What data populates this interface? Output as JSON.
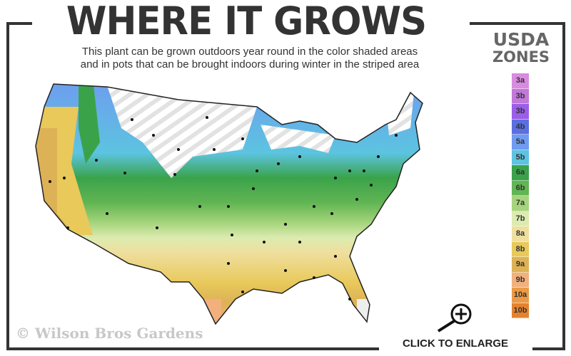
{
  "header": {
    "title": "WHERE IT GROWS",
    "subtitle_line1": "This plant can be grown outdoors year round in the color shaded areas",
    "subtitle_line2": "and in pots that can be brought indoors during winter in the striped area"
  },
  "legend": {
    "title_line1": "USDA",
    "title_line2": "ZONES",
    "zones": [
      {
        "label": "3a",
        "color": "#d98be0"
      },
      {
        "label": "3b",
        "color": "#c178d8"
      },
      {
        "label": "3b",
        "color": "#9a5ee8"
      },
      {
        "label": "4b",
        "color": "#5b6fe0"
      },
      {
        "label": "5a",
        "color": "#6f9bf0"
      },
      {
        "label": "5b",
        "color": "#5cc4e0"
      },
      {
        "label": "6a",
        "color": "#3aa34a"
      },
      {
        "label": "6b",
        "color": "#62b553"
      },
      {
        "label": "7a",
        "color": "#a6d47c"
      },
      {
        "label": "7b",
        "color": "#dcebb0"
      },
      {
        "label": "8a",
        "color": "#efdf9e"
      },
      {
        "label": "8b",
        "color": "#e8c95a"
      },
      {
        "label": "9a",
        "color": "#ddb256"
      },
      {
        "label": "9b",
        "color": "#f2b07c"
      },
      {
        "label": "10a",
        "color": "#ec9a45"
      },
      {
        "label": "10b",
        "color": "#e5822e"
      }
    ]
  },
  "watermark": "© Wilson Bros Gardens",
  "enlarge": {
    "label": "CLICK TO ENLARGE",
    "icon": "magnifier-plus-icon"
  }
}
